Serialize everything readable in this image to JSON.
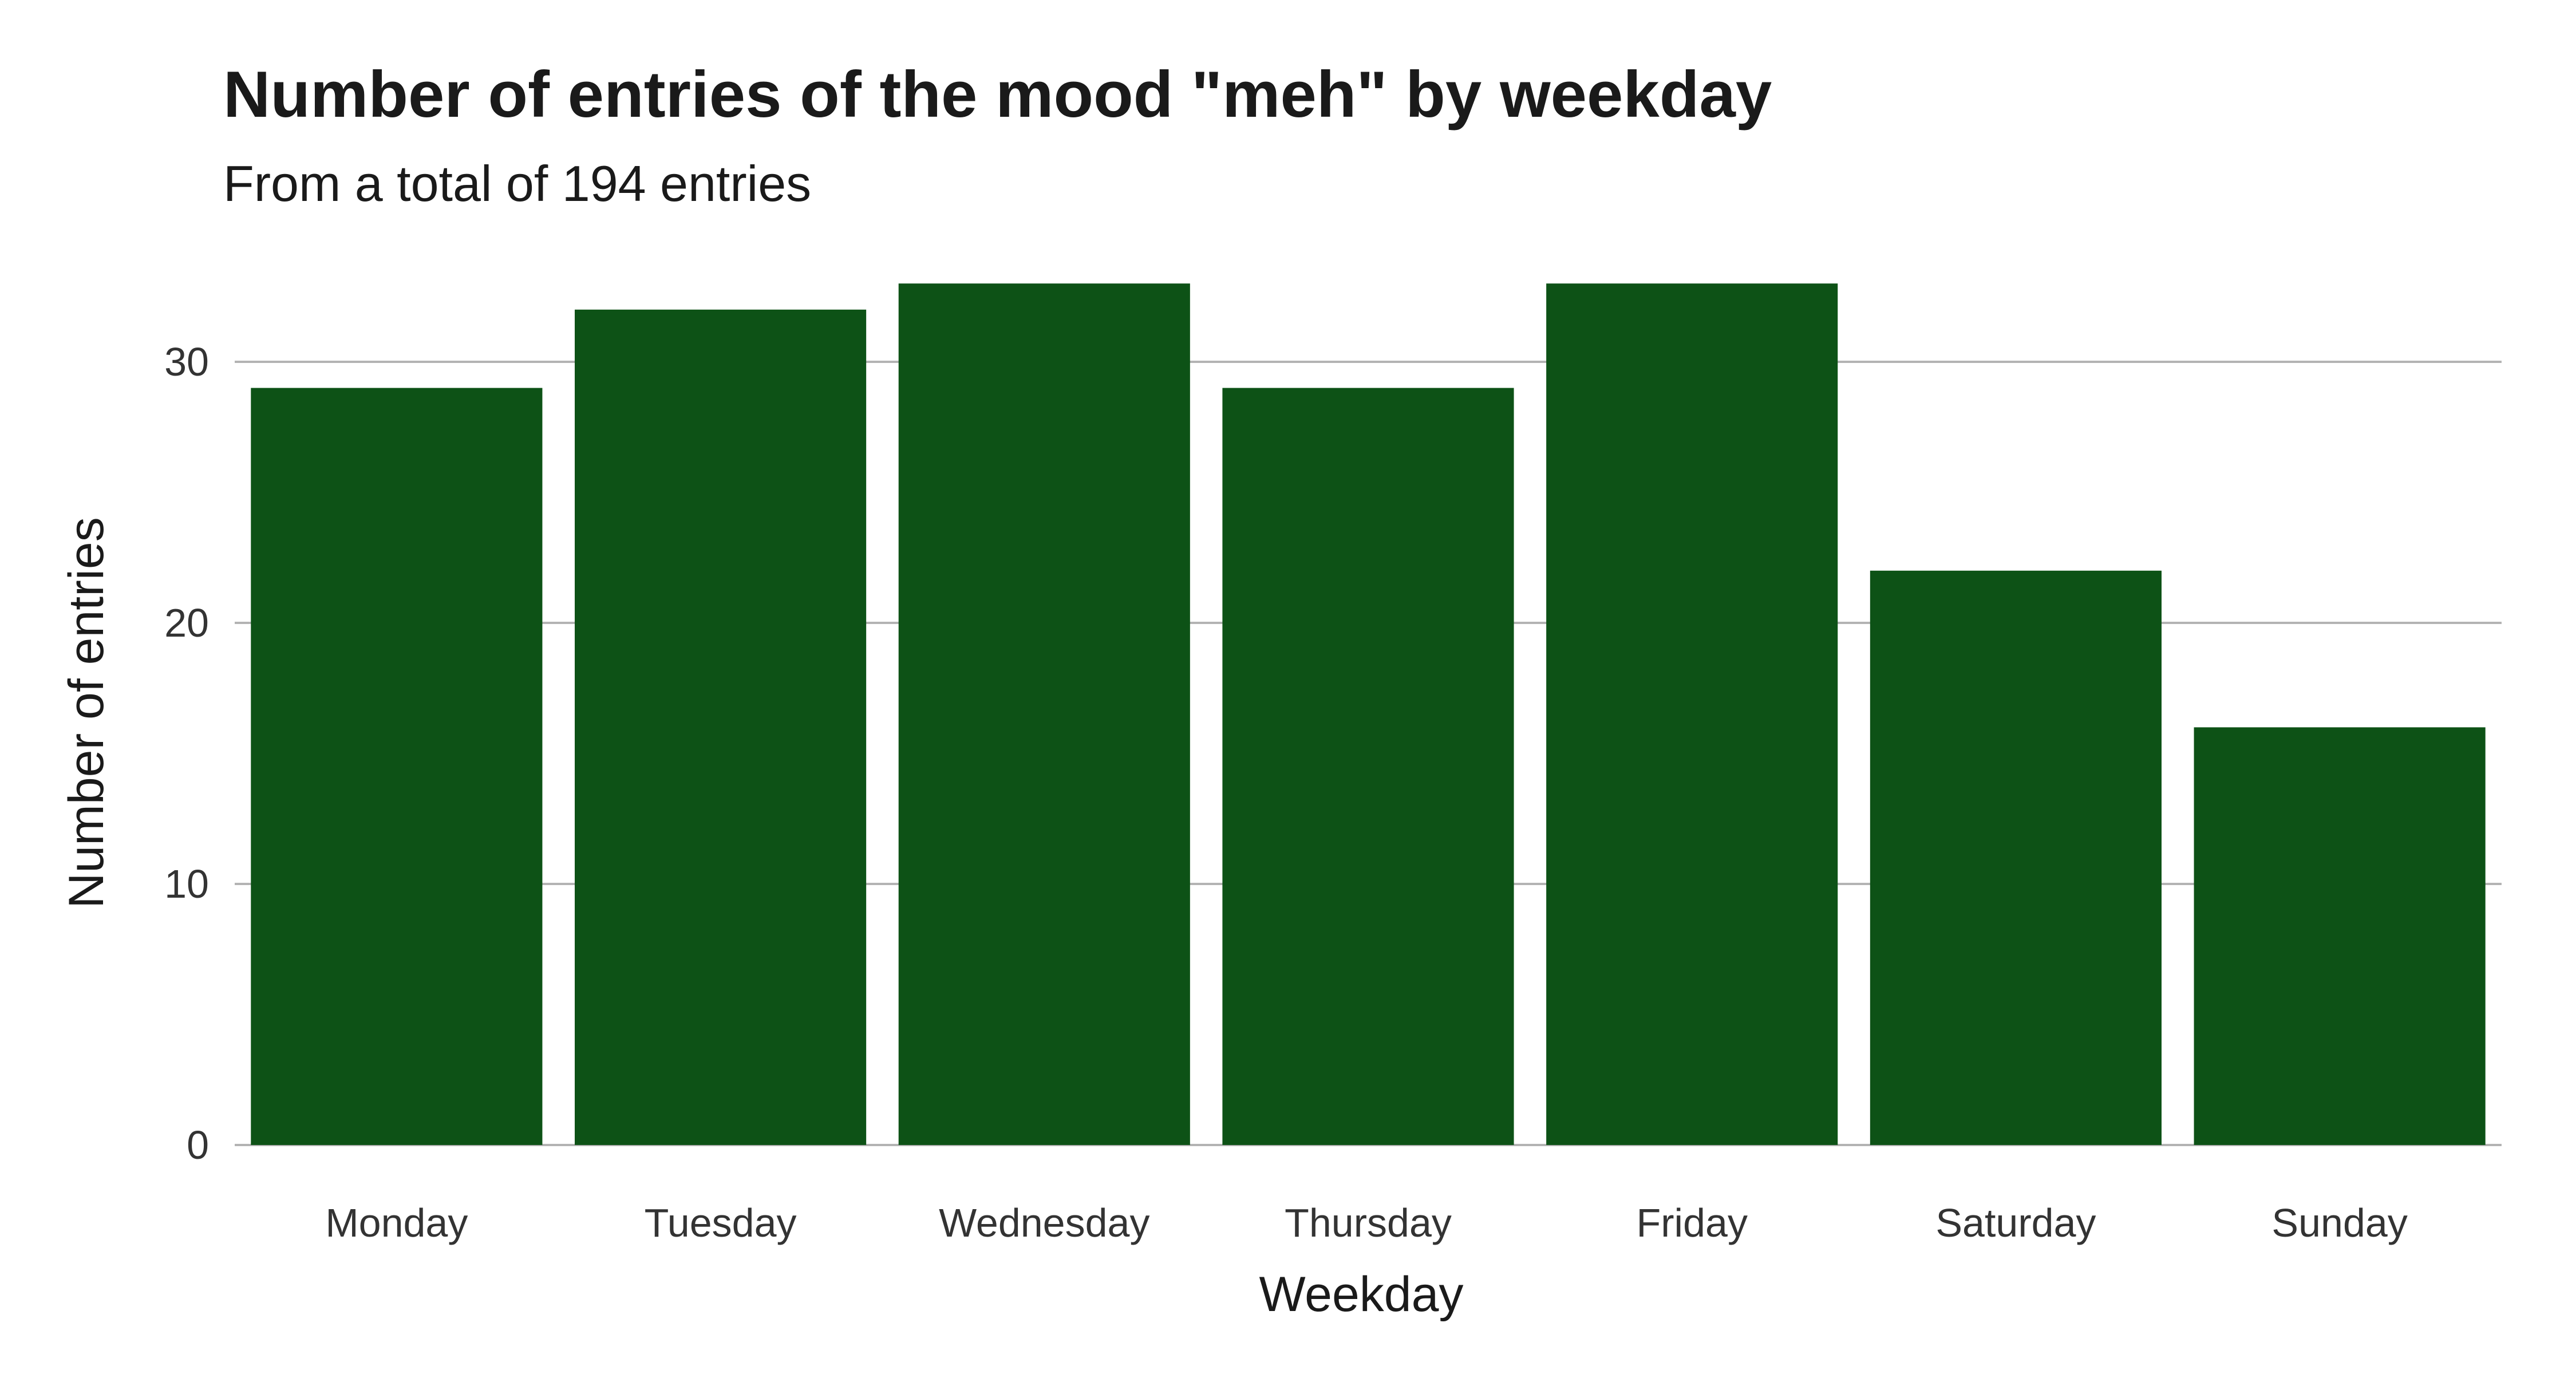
{
  "chart_data": {
    "type": "bar",
    "title": "Number of entries of the mood \"meh\" by weekday",
    "subtitle": "From a total of 194 entries",
    "xlabel": "Weekday",
    "ylabel": "Number of entries",
    "categories": [
      "Monday",
      "Tuesday",
      "Wednesday",
      "Thursday",
      "Friday",
      "Saturday",
      "Sunday"
    ],
    "values": [
      29,
      32,
      33,
      29,
      33,
      22,
      16
    ],
    "yticks": [
      0,
      10,
      20,
      30
    ],
    "ylim": [
      0,
      34
    ],
    "grid": true,
    "legend": "none",
    "bar_color": "#0d5216",
    "grid_color": "#b3b3b3"
  }
}
